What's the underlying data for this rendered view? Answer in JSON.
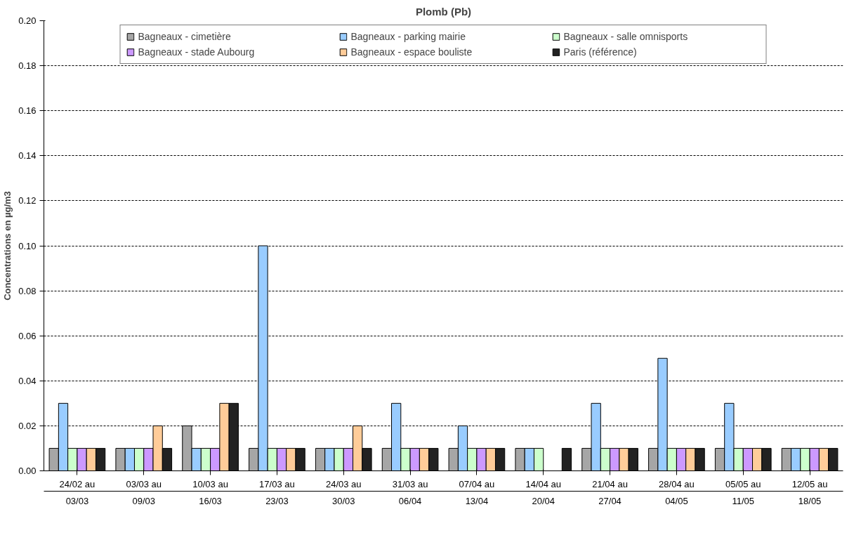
{
  "chart_data": {
    "type": "bar",
    "title": "Plomb (Pb)",
    "ylabel": "Concentrations en µg/m3",
    "categories": [
      "24/02 au\n03/03",
      "03/03 au\n09/03",
      "10/03 au\n16/03",
      "17/03 au\n23/03",
      "24/03 au\n30/03",
      "31/03 au\n06/04",
      "07/04 au\n13/04",
      "14/04 au\n20/04",
      "21/04 au\n27/04",
      "28/04 au\n04/05",
      "05/05 au\n11/05",
      "12/05 au\n18/05"
    ],
    "series": [
      {
        "name": "Bagneaux - cimetière",
        "color": "#a6a6a6",
        "values": [
          0.01,
          0.01,
          0.02,
          0.01,
          0.01,
          0.01,
          0.01,
          0.01,
          0.01,
          0.01,
          0.01,
          0.01
        ]
      },
      {
        "name": "Bagneaux - parking mairie",
        "color": "#99ccff",
        "values": [
          0.03,
          0.01,
          0.01,
          0.1,
          0.01,
          0.03,
          0.02,
          0.01,
          0.03,
          0.05,
          0.03,
          0.01
        ]
      },
      {
        "name": "Bagneaux - salle omnisports",
        "color": "#ccffcc",
        "values": [
          0.01,
          0.01,
          0.01,
          0.01,
          0.01,
          0.01,
          0.01,
          0.01,
          0.01,
          0.01,
          0.01,
          0.01
        ]
      },
      {
        "name": "Bagneaux - stade Aubourg",
        "color": "#cc99ff",
        "values": [
          0.01,
          0.01,
          0.01,
          0.01,
          0.01,
          0.01,
          0.01,
          null,
          0.01,
          0.01,
          0.01,
          0.01
        ]
      },
      {
        "name": "Bagneaux - espace bouliste",
        "color": "#ffcc99",
        "values": [
          0.01,
          0.02,
          0.03,
          0.01,
          0.02,
          0.01,
          0.01,
          null,
          0.01,
          0.01,
          0.01,
          0.01
        ]
      },
      {
        "name": "Paris (référence)",
        "color": "#222222",
        "values": [
          0.01,
          0.01,
          0.03,
          0.01,
          0.01,
          0.01,
          0.01,
          0.01,
          0.01,
          0.01,
          0.01,
          0.01
        ]
      }
    ],
    "ylim": [
      0,
      0.2
    ],
    "yticks": [
      {
        "value": 0,
        "label": "0.00"
      },
      {
        "value": 0.02,
        "label": "0.02"
      },
      {
        "value": 0.04,
        "label": "0.04"
      },
      {
        "value": 0.06,
        "label": "0.06"
      },
      {
        "value": 0.08,
        "label": "0.08"
      },
      {
        "value": 0.1,
        "label": "0.10"
      },
      {
        "value": 0.12,
        "label": "0.12"
      },
      {
        "value": 0.14,
        "label": "0.14"
      },
      {
        "value": 0.16,
        "label": "0.16"
      },
      {
        "value": 0.18,
        "label": "0.18"
      },
      {
        "value": 0.2,
        "label": "0.20"
      }
    ],
    "grid": "y",
    "legend": "top"
  }
}
